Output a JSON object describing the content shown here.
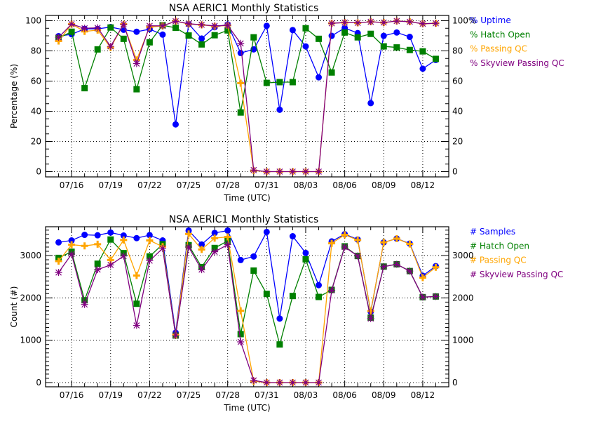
{
  "chart_data": [
    {
      "type": "line",
      "title": "NSA AERIC1 Monthly Statistics",
      "xlabel": "Time (UTC)",
      "ylabel": "Percentage (%)",
      "ylim": [
        -3.5,
        103.5
      ],
      "xlim_days": [
        -1,
        30
      ],
      "yticks": [
        0,
        20,
        40,
        60,
        80,
        100
      ],
      "right_yticks": [
        "0",
        "20",
        "40",
        "60",
        "80",
        "100%"
      ],
      "x_tick_labels": [
        "07/16",
        "07/19",
        "07/22",
        "07/25",
        "07/28",
        "07/31",
        "08/03",
        "08/06",
        "08/09",
        "08/12"
      ],
      "x_tick_days": [
        1,
        4,
        7,
        10,
        13,
        16,
        19,
        22,
        25,
        28
      ],
      "x_dates": [
        "07/15",
        "07/16",
        "07/17",
        "07/18",
        "07/19",
        "07/20",
        "07/21",
        "07/22",
        "07/23",
        "07/24",
        "07/25",
        "07/26",
        "07/27",
        "07/28",
        "07/29",
        "07/30",
        "07/31",
        "08/01",
        "08/02",
        "08/03",
        "08/04",
        "08/05",
        "08/06",
        "08/07",
        "08/08",
        "08/09",
        "08/10",
        "08/11",
        "08/12",
        "08/13"
      ],
      "grid": true,
      "legend_placement": "right",
      "series": [
        {
          "name": "% Uptime",
          "color": "#0000ff",
          "marker": "circle",
          "values": [
            89.8,
            91,
            94.6,
            94.6,
            95.8,
            94,
            92.7,
            94.4,
            90.8,
            31.3,
            97.8,
            88.2,
            95.7,
            97.5,
            78.6,
            81,
            96.6,
            41,
            93.8,
            83,
            62.5,
            90,
            95.2,
            91.8,
            45.4,
            90,
            92.2,
            89.3,
            68.2,
            74
          ]
        },
        {
          "name": "% Hatch Open",
          "color": "#008000",
          "marker": "square",
          "values": [
            88.5,
            92.7,
            55.3,
            81,
            95.5,
            88,
            54.6,
            85.7,
            97,
            95.3,
            90.2,
            84.3,
            90.4,
            93.6,
            39.2,
            89,
            58.8,
            59.3,
            59.3,
            95,
            88,
            65.7,
            92.2,
            89,
            91.3,
            83,
            82.3,
            80.6,
            79.7,
            74.7
          ]
        },
        {
          "name": "% Passing QC",
          "color": "#ffa500",
          "marker": "plus",
          "values": [
            86.5,
            97.7,
            92.9,
            93.8,
            82.2,
            97.7,
            74,
            95.8,
            96.6,
            99.7,
            97.8,
            97.3,
            96.3,
            96.9,
            58.6,
            0.7,
            0,
            0,
            0,
            0,
            0,
            98.3,
            98.8,
            98.6,
            99.3,
            98.8,
            99.8,
            99.3,
            98,
            98.3
          ]
        },
        {
          "name": "% Skyview Passing QC",
          "color": "#800080",
          "marker": "asterisk",
          "values": [
            89,
            97.7,
            95,
            95.3,
            83,
            97.7,
            71.6,
            96.6,
            96.6,
            99.7,
            98,
            97.3,
            96.6,
            96.9,
            85,
            1,
            0,
            0,
            0,
            0,
            0,
            98.3,
            98.8,
            98.6,
            99.3,
            98.8,
            99.8,
            99.3,
            98,
            98.3
          ]
        }
      ]
    },
    {
      "type": "line",
      "title": "NSA AERIC1 Monthly Statistics",
      "xlabel": "Time (UTC)",
      "ylabel": "Count (#)",
      "ylim": [
        -100,
        3680
      ],
      "xlim_days": [
        -1,
        30
      ],
      "yticks": [
        0,
        1000,
        2000,
        3000
      ],
      "right_yticks": [
        "0",
        "1000",
        "2000",
        "3000"
      ],
      "x_tick_labels": [
        "07/16",
        "07/19",
        "07/22",
        "07/25",
        "07/28",
        "07/31",
        "08/03",
        "08/06",
        "08/09",
        "08/12"
      ],
      "x_tick_days": [
        1,
        4,
        7,
        10,
        13,
        16,
        19,
        22,
        25,
        28
      ],
      "grid": true,
      "legend_placement": "right",
      "series": [
        {
          "name": "# Samples",
          "color": "#0000ff",
          "marker": "circle",
          "values": [
            3311,
            3356,
            3489,
            3478,
            3544,
            3472,
            3411,
            3483,
            3356,
            1178,
            3589,
            3261,
            3533,
            3589,
            2894,
            2978,
            3556,
            1511,
            3456,
            3061,
            2300,
            3333,
            3506,
            3378,
            1672,
            3311,
            3400,
            3283,
            2522,
            2750
          ]
        },
        {
          "name": "# Hatch Open",
          "color": "#008000",
          "marker": "square",
          "values": [
            2944,
            3089,
            1944,
            2806,
            3378,
            3056,
            1861,
            2978,
            3267,
            1111,
            3244,
            2728,
            3178,
            3344,
            1144,
            2644,
            2094,
            900,
            2044,
            2911,
            2022,
            2189,
            3217,
            2989,
            1533,
            2739,
            2794,
            2633,
            2017,
            2033
          ]
        },
        {
          "name": "# Passing QC",
          "color": "#ffa500",
          "marker": "plus",
          "values": [
            2867,
            3256,
            3228,
            3267,
            2894,
            3367,
            2528,
            3356,
            3211,
            1122,
            3511,
            3144,
            3411,
            3439,
            1694,
            33,
            0,
            0,
            0,
            0,
            0,
            3289,
            3489,
            3367,
            1689,
            3311,
            3400,
            3272,
            2478,
            2722
          ]
        },
        {
          "name": "# Skyview Passing QC",
          "color": "#800080",
          "marker": "asterisk",
          "values": [
            2600,
            3033,
            1844,
            2667,
            2778,
            2989,
            1350,
            2878,
            3167,
            1111,
            3200,
            2667,
            3089,
            3256,
            961,
            50,
            0,
            0,
            0,
            0,
            0,
            2178,
            3200,
            2989,
            1511,
            2739,
            2794,
            2633,
            2017,
            2033
          ]
        }
      ]
    }
  ]
}
